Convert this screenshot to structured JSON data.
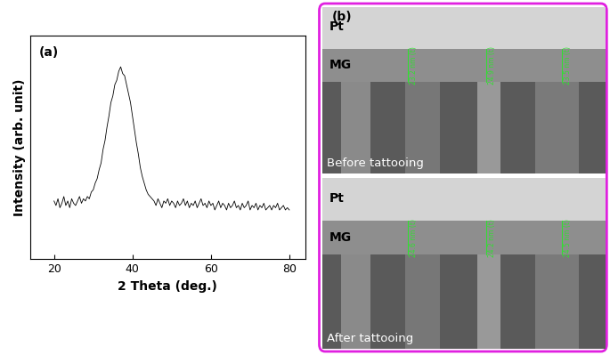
{
  "chart_data": {
    "type": "line",
    "annotations": [
      "(a)"
    ],
    "x_label": "2 Theta (deg.)",
    "y_label": "Intensity (arb. unit)",
    "x": [
      20.0,
      20.5,
      21.0,
      21.5,
      22.0,
      22.5,
      23.0,
      23.5,
      24.0,
      24.5,
      25.0,
      25.5,
      26.0,
      26.5,
      27.0,
      27.5,
      28.0,
      28.5,
      29.0,
      29.5,
      30.0,
      30.5,
      31.0,
      31.5,
      32.0,
      32.5,
      33.0,
      33.5,
      34.0,
      34.5,
      35.0,
      35.5,
      36.0,
      36.5,
      37.0,
      37.5,
      38.0,
      38.5,
      39.0,
      39.5,
      40.0,
      40.5,
      41.0,
      41.5,
      42.0,
      42.5,
      43.0,
      43.5,
      44.0,
      44.5,
      45.0,
      45.5,
      46.0,
      46.5,
      47.0,
      47.5,
      48.0,
      48.5,
      49.0,
      49.5,
      50.0,
      50.5,
      51.0,
      51.5,
      52.0,
      52.5,
      53.0,
      53.5,
      54.0,
      54.5,
      55.0,
      55.5,
      56.0,
      56.5,
      57.0,
      57.5,
      58.0,
      58.5,
      59.0,
      59.5,
      60.0,
      60.5,
      61.0,
      61.5,
      62.0,
      62.5,
      63.0,
      63.5,
      64.0,
      64.5,
      65.0,
      65.5,
      66.0,
      66.5,
      67.0,
      67.5,
      68.0,
      68.5,
      69.0,
      69.5,
      70.0,
      70.5,
      71.0,
      71.5,
      72.0,
      72.5,
      73.0,
      73.5,
      74.0,
      74.5,
      75.0,
      75.5,
      76.0,
      76.5,
      77.0,
      77.5,
      78.0,
      78.5,
      79.0,
      79.5,
      80.0
    ],
    "values": [
      26,
      24,
      27,
      23,
      25,
      28,
      24,
      26,
      23,
      27,
      25,
      24,
      26,
      28,
      25,
      27,
      26,
      28,
      27,
      30,
      31,
      34,
      36,
      40,
      43,
      49,
      53,
      59,
      64,
      70,
      73,
      78,
      80,
      84,
      86,
      83,
      82,
      78,
      74,
      70,
      64,
      58,
      52,
      47,
      41,
      37,
      34,
      31,
      29,
      28,
      27,
      26,
      24,
      27,
      25,
      23,
      26,
      25,
      27,
      24,
      26,
      25,
      23,
      26,
      24,
      25,
      27,
      24,
      26,
      23,
      25,
      24,
      26,
      23,
      25,
      27,
      24,
      25,
      23,
      26,
      24,
      25,
      22,
      24,
      26,
      23,
      25,
      24,
      22,
      25,
      23,
      24,
      26,
      23,
      24,
      22,
      25,
      23,
      24,
      26,
      22,
      24,
      23,
      25,
      22,
      24,
      23,
      25,
      22,
      23,
      24,
      22,
      24,
      23,
      25,
      22,
      23,
      24,
      22,
      23,
      22
    ],
    "color": "#000000",
    "xlim": [
      14,
      84
    ],
    "xticks": [
      20,
      40,
      60,
      80
    ],
    "ylim": [
      0,
      100
    ],
    "yticks": [],
    "tick_labels": "x"
  },
  "images": {
    "panel_label": "(b)",
    "panels": [
      {
        "caption": "Before tattooing",
        "layers": [
          "Pt",
          "MG"
        ],
        "measurements": [
          "23.2 nm (t)",
          "24.9 nm (t)",
          "23.5 nm (t)"
        ]
      },
      {
        "caption": "After tattooing",
        "layers": [
          "Pt",
          "MG"
        ],
        "measurements": [
          "24.6 nm (t)",
          "24.2 nm (t)",
          "24.5 nm (t)"
        ]
      }
    ]
  }
}
